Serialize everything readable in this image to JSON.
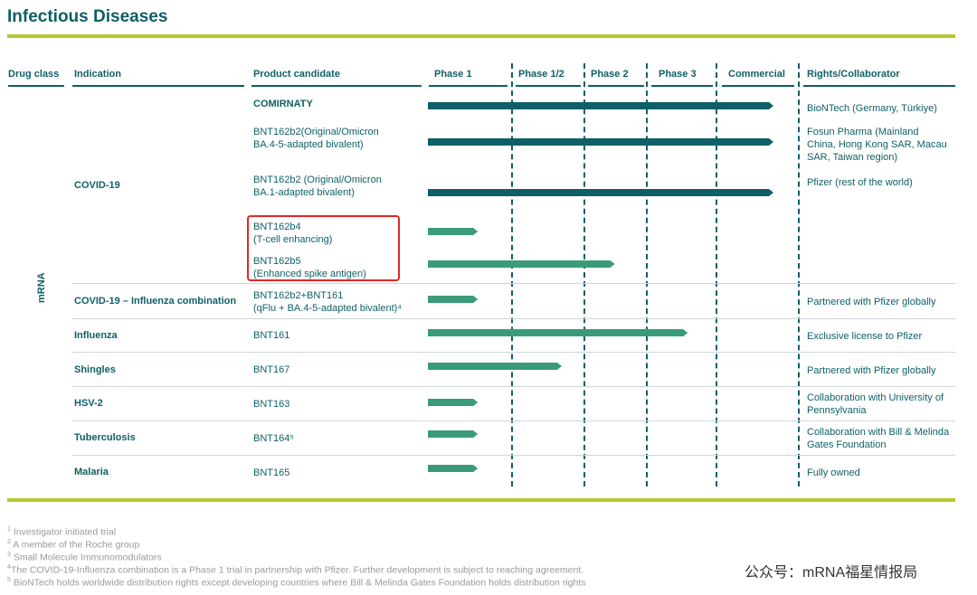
{
  "title": "Infectious Diseases",
  "headers": {
    "drug_class": "Drug class",
    "indication": "Indication",
    "product": "Product candidate",
    "phase1": "Phase 1",
    "phase12": "Phase 1/2",
    "phase2": "Phase 2",
    "phase3": "Phase 3",
    "commercial": "Commercial",
    "rights": "Rights/Collaborator"
  },
  "drug_class_label": "mRNA",
  "colors": {
    "dark_bar": "#0e5f67",
    "light_bar": "#3a9b79",
    "rule": "#b7c82d",
    "highlight": "#e32626"
  },
  "indications": [
    "COVID-19",
    "COVID-19 – Influenza combination",
    "Influenza",
    "Shingles",
    "HSV-2",
    "Tuberculosis",
    "Malaria"
  ],
  "products": [
    "COMIRNATY",
    "BNT162b2(Original/Omicron\nBA.4-5-adapted bivalent)",
    "BNT162b2 (Original/Omicron\nBA.1-adapted bivalent)",
    "BNT162b4\n(T-cell enhancing)",
    "BNT162b5\n(Enhanced spike antigen)",
    "BNT162b2+BNT161\n(qFlu + BA.4-5-adapted bivalent)⁴",
    "BNT161",
    "BNT167",
    "BNT163",
    "BNT164⁵",
    "BNT165"
  ],
  "rights": [
    "BioNTech (Germany, Türkiye)",
    "Fosun Pharma (Mainland\nChina, Hong Kong SAR, Macau\nSAR, Taiwan region)",
    "Pfizer (rest of the world)",
    "Partnered with Pfizer globally",
    "Exclusive license to Pfizer",
    "Partnered with Pfizer globally",
    "Collaboration with University of\nPennsylvania",
    "Collaboration with Bill & Melinda\nGates Foundation",
    "Fully owned"
  ],
  "chart_data": {
    "type": "bar",
    "orientation": "horizontal",
    "title": "Infectious Diseases",
    "stages": [
      "Phase 1",
      "Phase 1/2",
      "Phase 2",
      "Phase 3",
      "Commercial"
    ],
    "categories": [
      "COMIRNATY",
      "BNT162b2 (BA.4-5 bivalent)",
      "BNT162b2 (BA.1 bivalent)",
      "BNT162b4",
      "BNT162b5",
      "BNT162b2+BNT161",
      "BNT161",
      "BNT167",
      "BNT163",
      "BNT164",
      "BNT165"
    ],
    "values": [
      5,
      5,
      5,
      0.6,
      2.5,
      0.6,
      3.6,
      1.7,
      0.6,
      0.6,
      0.6
    ],
    "series_style": [
      "commercial",
      "commercial",
      "commercial",
      "pipeline",
      "pipeline",
      "pipeline",
      "pipeline",
      "pipeline",
      "pipeline",
      "pipeline",
      "pipeline"
    ],
    "xlim": [
      0,
      5
    ]
  },
  "footnotes": [
    {
      "num": "1",
      "text": " Investigator initiated trial"
    },
    {
      "num": "2",
      "text": " A member of the Roche group"
    },
    {
      "num": "3",
      "text": " Small Molecule Immunomodulators"
    },
    {
      "num": "4",
      "text": "The COVID-19-Influenza combination is a Phase 1 trial in partnership with Pfizer. Further development is subject to reaching agreement."
    },
    {
      "num": "5",
      "text": " BioNTech holds worldwide distribution rights except developing countries where Bill & Melinda Gates Foundation holds distribution rights"
    }
  ],
  "watermark": "公众号：mRNA福星情报局"
}
